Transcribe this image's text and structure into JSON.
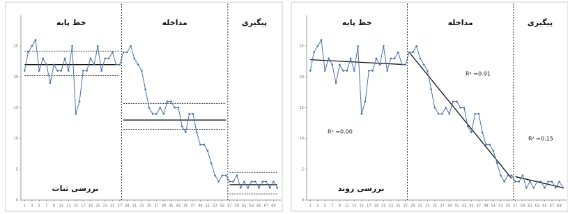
{
  "chart_data": [
    {
      "type": "line",
      "phase_labels": [
        "خط پایه",
        "مداخله",
        "پیگیری"
      ],
      "phase_lines": [
        27.5,
        56.5
      ],
      "caption": "بررسی ثبات",
      "x": [
        1,
        2,
        3,
        4,
        5,
        6,
        7,
        8,
        9,
        10,
        11,
        12,
        13,
        14,
        15,
        16,
        17,
        18,
        19,
        20,
        21,
        22,
        23,
        24,
        25,
        26,
        27,
        28,
        29,
        30,
        31,
        32,
        33,
        34,
        35,
        36,
        37,
        38,
        39,
        40,
        41,
        42,
        43,
        44,
        45,
        46,
        47,
        48,
        49,
        50,
        51,
        52,
        53,
        54,
        55,
        56,
        57,
        58,
        59,
        60,
        61,
        62,
        63,
        64,
        65,
        66,
        67,
        68,
        69,
        70
      ],
      "series": [
        {
          "color": "#4a6fa5",
          "values": [
            21,
            24,
            25,
            26,
            21,
            23,
            22,
            19,
            22,
            21,
            21,
            23,
            21,
            25,
            14,
            16,
            21,
            21,
            23,
            22,
            25,
            21,
            23,
            23,
            24,
            22,
            22,
            24,
            24,
            25,
            23,
            22,
            21,
            18,
            15,
            14,
            14,
            15,
            14,
            16,
            16,
            15,
            15,
            12,
            11,
            14,
            14,
            11,
            9,
            9,
            8,
            6,
            4,
            3,
            4,
            4,
            3,
            3,
            4,
            2,
            3,
            2,
            3,
            3,
            2,
            3,
            3,
            2,
            3,
            2
          ]
        }
      ],
      "ref_lines": [
        {
          "x": [
            1,
            27
          ],
          "y": [
            22,
            22
          ],
          "style": "solid"
        },
        {
          "x": [
            1,
            27
          ],
          "y": [
            24.2,
            24.2
          ],
          "style": "dotted"
        },
        {
          "x": [
            1,
            27
          ],
          "y": [
            20.2,
            20.2
          ],
          "style": "dotted"
        },
        {
          "x": [
            28,
            56
          ],
          "y": [
            13,
            13
          ],
          "style": "solid"
        },
        {
          "x": [
            28,
            56
          ],
          "y": [
            15.7,
            15.7
          ],
          "style": "dotted"
        },
        {
          "x": [
            28,
            56
          ],
          "y": [
            11.5,
            11.5
          ],
          "style": "dotted"
        },
        {
          "x": [
            57,
            70
          ],
          "y": [
            2.5,
            2.5
          ],
          "style": "solid"
        },
        {
          "x": [
            57,
            70
          ],
          "y": [
            4.5,
            4.5
          ],
          "style": "dotted"
        },
        {
          "x": [
            57,
            70
          ],
          "y": [
            1,
            1
          ],
          "style": "dotted"
        }
      ],
      "annotations": [],
      "xlim": [
        0,
        71
      ],
      "ylim": [
        0,
        30
      ],
      "yticks": [
        0,
        5,
        10,
        15,
        20,
        25
      ],
      "xticks": [
        1,
        3,
        5,
        7,
        9,
        11,
        13,
        15,
        17,
        19,
        21,
        23,
        25,
        27,
        29,
        31,
        33,
        35,
        37,
        39,
        41,
        43,
        45,
        47,
        49,
        51,
        53,
        55,
        57,
        59,
        61,
        63,
        65,
        67,
        69
      ]
    },
    {
      "type": "line",
      "phase_labels": [
        "خط پایه",
        "مداخله",
        "پیگیری"
      ],
      "phase_lines": [
        27.5,
        56.5
      ],
      "caption": "بررسی روند",
      "x": [
        1,
        2,
        3,
        4,
        5,
        6,
        7,
        8,
        9,
        10,
        11,
        12,
        13,
        14,
        15,
        16,
        17,
        18,
        19,
        20,
        21,
        22,
        23,
        24,
        25,
        26,
        27,
        28,
        29,
        30,
        31,
        32,
        33,
        34,
        35,
        36,
        37,
        38,
        39,
        40,
        41,
        42,
        43,
        44,
        45,
        46,
        47,
        48,
        49,
        50,
        51,
        52,
        53,
        54,
        55,
        56,
        57,
        58,
        59,
        60,
        61,
        62,
        63,
        64,
        65,
        66,
        67,
        68,
        69,
        70
      ],
      "series": [
        {
          "color": "#4a6fa5",
          "values": [
            21,
            24,
            25,
            26,
            21,
            23,
            22,
            19,
            22,
            21,
            21,
            23,
            21,
            25,
            14,
            16,
            21,
            21,
            23,
            22,
            25,
            21,
            23,
            23,
            24,
            22,
            22,
            24,
            24,
            25,
            23,
            22,
            21,
            18,
            15,
            14,
            14,
            15,
            14,
            16,
            16,
            15,
            15,
            12,
            11,
            14,
            14,
            11,
            9,
            9,
            8,
            6,
            4,
            3,
            4,
            4,
            3,
            3,
            4,
            2,
            3,
            2,
            3,
            3,
            2,
            3,
            3,
            2,
            3,
            2
          ]
        }
      ],
      "ref_lines": [
        {
          "x": [
            1,
            27
          ],
          "y": [
            22.8,
            22
          ],
          "style": "solid"
        },
        {
          "x": [
            28,
            56
          ],
          "y": [
            24,
            3.5
          ],
          "style": "solid"
        },
        {
          "x": [
            57,
            70
          ],
          "y": [
            3.8,
            2
          ],
          "style": "solid"
        }
      ],
      "annotations": [
        "R² =0.00",
        "R² =0.91",
        "R² =0.15"
      ],
      "xlim": [
        0,
        71
      ],
      "ylim": [
        0,
        30
      ],
      "yticks": [
        0,
        5,
        10,
        15,
        20,
        25
      ],
      "xticks": [
        1,
        3,
        5,
        7,
        9,
        11,
        13,
        15,
        17,
        19,
        21,
        23,
        25,
        27,
        29,
        31,
        33,
        35,
        37,
        39,
        41,
        43,
        45,
        47,
        49,
        51,
        53,
        55,
        57,
        59,
        61,
        63,
        65,
        67,
        69
      ]
    }
  ]
}
